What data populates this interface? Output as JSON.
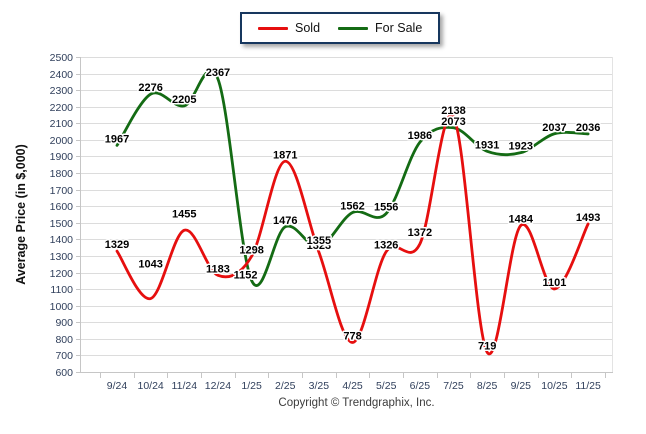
{
  "chart_data": {
    "type": "line",
    "title": "",
    "xlabel": "",
    "ylabel": "Average Price (in $,000)",
    "ylim": [
      600,
      2500
    ],
    "ytick_step": 100,
    "grid": true,
    "legend_position": "top-center",
    "categories": [
      "9/24",
      "10/24",
      "11/24",
      "12/24",
      "1/25",
      "2/25",
      "3/25",
      "4/25",
      "5/25",
      "6/25",
      "7/25",
      "8/25",
      "9/25",
      "10/25",
      "11/25"
    ],
    "series": [
      {
        "name": "Sold",
        "color": "#e60f0f",
        "values": [
          1329,
          1043,
          1455,
          1183,
          1298,
          1871,
          1323,
          778,
          1326,
          1372,
          2138,
          719,
          1484,
          1101,
          1493
        ]
      },
      {
        "name": "For Sale",
        "color": "#146b14",
        "values": [
          1967,
          2276,
          2205,
          2367,
          1152,
          1476,
          1355,
          1562,
          1556,
          1986,
          2073,
          1931,
          1923,
          2037,
          2036
        ]
      }
    ]
  },
  "legend": {
    "border_color": "#17375e"
  },
  "footer": {
    "copyright": "Copyright © Trendgraphix, Inc."
  },
  "colors": {
    "grid": "#dcdcdc",
    "axis": "#c6c6c6",
    "plot_right_border": "#e3e3e3",
    "tick_label": "#31405c",
    "data_label": "#000000",
    "label_halo": "#ffffff"
  }
}
